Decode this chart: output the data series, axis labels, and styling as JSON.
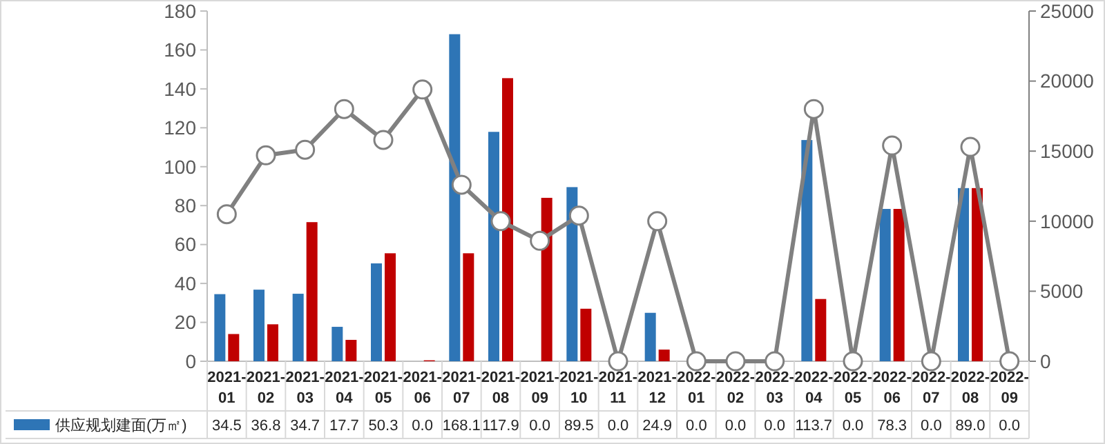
{
  "chart_data": {
    "type": "bar",
    "categories": [
      "2021-01",
      "2021-02",
      "2021-03",
      "2021-04",
      "2021-05",
      "2021-06",
      "2021-07",
      "2021-08",
      "2021-09",
      "2021-10",
      "2021-11",
      "2021-12",
      "2022-01",
      "2022-02",
      "2022-03",
      "2022-04",
      "2022-05",
      "2022-06",
      "2022-07",
      "2022-08",
      "2022-09"
    ],
    "series": [
      {
        "name": "供应规划建面(万㎡)",
        "color": "#2e75b6",
        "values": [
          34.5,
          36.8,
          34.7,
          17.7,
          50.3,
          0.0,
          168.1,
          117.9,
          0.0,
          89.5,
          0.0,
          24.9,
          0.0,
          0.0,
          0.0,
          113.7,
          0.0,
          78.3,
          0.0,
          89.0,
          0.0
        ],
        "value_labels": [
          "34.5",
          "36.8",
          "34.7",
          "17.7",
          "50.3",
          "0.0",
          "168.1",
          "117.9",
          "0.0",
          "89.5",
          "0.0",
          "24.9",
          "0.0",
          "0.0",
          "0.0",
          "113.7",
          "0.0",
          "78.3",
          "0.0",
          "89.0",
          "0.0"
        ]
      },
      {
        "color": "#c00000",
        "values": [
          14,
          19,
          71.5,
          11,
          55.5,
          0.5,
          55.5,
          145.5,
          84,
          27,
          0,
          6,
          0,
          0,
          0,
          32,
          0,
          78.3,
          0,
          89,
          0
        ]
      },
      {
        "type": "line",
        "axis": "y2",
        "color": "#808080",
        "marker": "circle",
        "values": [
          10500,
          14700,
          15100,
          18000,
          15800,
          19400,
          12600,
          10000,
          8600,
          10400,
          0,
          10000,
          0,
          0,
          0,
          18000,
          0,
          15400,
          0,
          15300,
          0
        ]
      }
    ],
    "ylim": [
      0,
      180
    ],
    "yticks": [
      0,
      20,
      40,
      60,
      80,
      100,
      120,
      140,
      160,
      180
    ],
    "y2lim": [
      0,
      25000
    ],
    "y2ticks": [
      0,
      5000,
      10000,
      15000,
      20000,
      25000
    ],
    "grid": false,
    "legend": "bottom"
  }
}
